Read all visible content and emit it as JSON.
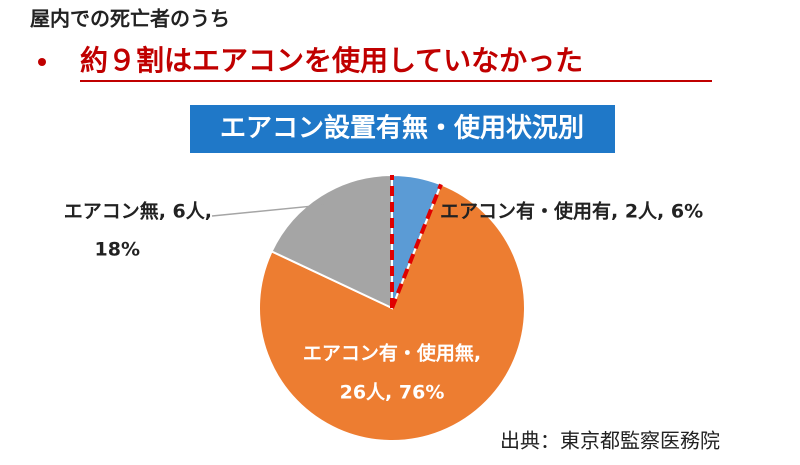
{
  "header": "屋内での死亡者のうち",
  "headline": "約９割はエアコンを使用していなかった",
  "source": "出典：東京都監察医務院",
  "chart_data": {
    "type": "pie",
    "title": "エアコン設置有無・使用状況別",
    "values": [
      6,
      76,
      18
    ],
    "value_labels": [
      [
        "エアコン有・使用有, 2人, 6%"
      ],
      [
        "エアコン有・使用無,",
        "26人, 76%"
      ],
      [
        "エアコン無, 6人,",
        "18%"
      ]
    ],
    "colors": [
      "#5b9bd5",
      "#ed7d31",
      "#a5a5a5"
    ]
  }
}
